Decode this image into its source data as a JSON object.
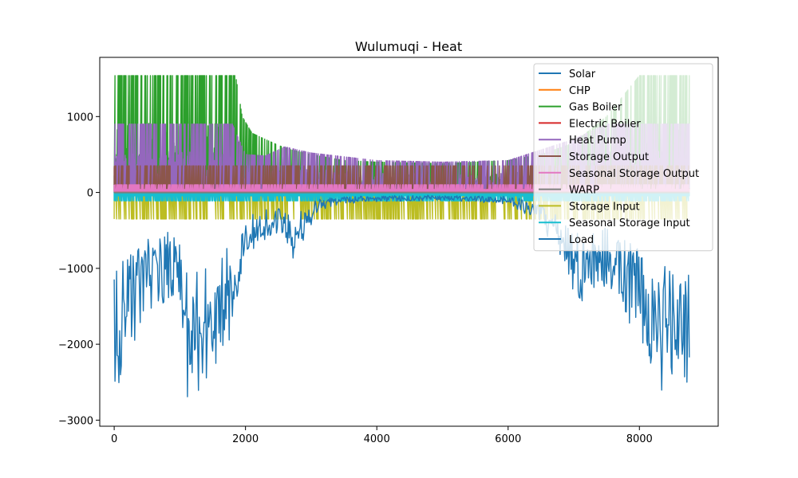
{
  "chart_data": {
    "type": "line",
    "title": "Wulumuqi - Heat",
    "xlabel": "",
    "ylabel": "",
    "xlim": [
      -220,
      9200
    ],
    "ylim": [
      -3080,
      1780
    ],
    "x_ticks": [
      0,
      2000,
      4000,
      6000,
      8000
    ],
    "y_ticks": [
      -3000,
      -2000,
      -1000,
      0,
      1000
    ],
    "x_tick_labels": [
      "0",
      "2000",
      "4000",
      "6000",
      "8000"
    ],
    "y_tick_labels": [
      "−3000",
      "−2000",
      "−1000",
      "0",
      "1000"
    ],
    "grid": false,
    "legend_position": "upper-right",
    "n_hours": 8760,
    "series": [
      {
        "name": "Solar",
        "color": "#1f77b4",
        "points": [
          [
            0,
            0
          ],
          [
            8760,
            0
          ]
        ]
      },
      {
        "name": "CHP",
        "color": "#ff7f0e",
        "points": [
          [
            0,
            0
          ],
          [
            8760,
            0
          ]
        ]
      },
      {
        "name": "Gas Boiler",
        "color": "#2ca02c",
        "points": [
          [
            0,
            1540
          ],
          [
            1000,
            1540
          ],
          [
            1850,
            1540
          ],
          [
            1950,
            1000
          ],
          [
            2100,
            780
          ],
          [
            2300,
            700
          ],
          [
            2500,
            620
          ],
          [
            2700,
            560
          ],
          [
            3000,
            500
          ],
          [
            3500,
            420
          ],
          [
            4000,
            400
          ],
          [
            5000,
            380
          ],
          [
            6000,
            420
          ],
          [
            6500,
            500
          ],
          [
            7000,
            650
          ],
          [
            7500,
            1000
          ],
          [
            8000,
            1540
          ],
          [
            8760,
            1540
          ]
        ]
      },
      {
        "name": "Electric Boiler",
        "color": "#d62728",
        "points": [
          [
            0,
            0
          ],
          [
            8760,
            0
          ]
        ]
      },
      {
        "name": "Heat Pump",
        "color": "#9467bd",
        "points": [
          [
            0,
            900
          ],
          [
            1000,
            900
          ],
          [
            1800,
            900
          ],
          [
            1900,
            700
          ],
          [
            2000,
            500
          ],
          [
            2300,
            480
          ],
          [
            2600,
            600
          ],
          [
            3000,
            520
          ],
          [
            4000,
            420
          ],
          [
            5000,
            400
          ],
          [
            6000,
            420
          ],
          [
            7000,
            700
          ],
          [
            7500,
            900
          ],
          [
            8760,
            900
          ]
        ]
      },
      {
        "name": "Storage Output",
        "color": "#8c564b",
        "points": [
          [
            0,
            350
          ],
          [
            2000,
            350
          ],
          [
            3000,
            350
          ],
          [
            4000,
            350
          ],
          [
            5000,
            350
          ],
          [
            6000,
            350
          ],
          [
            7000,
            350
          ],
          [
            8760,
            350
          ]
        ]
      },
      {
        "name": "Seasonal Storage Output",
        "color": "#e377c2",
        "points": [
          [
            0,
            100
          ],
          [
            8760,
            100
          ]
        ]
      },
      {
        "name": "WARP",
        "color": "#7f7f7f",
        "points": [
          [
            0,
            0
          ],
          [
            8760,
            0
          ]
        ]
      },
      {
        "name": "Storage Input",
        "color": "#bcbd22",
        "points": [
          [
            0,
            -350
          ],
          [
            2000,
            -350
          ],
          [
            4000,
            -350
          ],
          [
            6000,
            -350
          ],
          [
            8760,
            -350
          ]
        ]
      },
      {
        "name": "Seasonal Storage Input",
        "color": "#17becf",
        "points": [
          [
            0,
            -110
          ],
          [
            8760,
            -110
          ]
        ]
      },
      {
        "name": "Load",
        "color": "#1f77b4",
        "points": [
          [
            0,
            -2870
          ],
          [
            200,
            -2400
          ],
          [
            400,
            -1800
          ],
          [
            600,
            -1600
          ],
          [
            800,
            -1400
          ],
          [
            1000,
            -1300
          ],
          [
            1100,
            -2700
          ],
          [
            1300,
            -2600
          ],
          [
            1500,
            -2300
          ],
          [
            1700,
            -2100
          ],
          [
            1800,
            -1800
          ],
          [
            1900,
            -1200
          ],
          [
            2000,
            -800
          ],
          [
            2200,
            -700
          ],
          [
            2500,
            -550
          ],
          [
            2700,
            -900
          ],
          [
            2900,
            -600
          ],
          [
            3100,
            -250
          ],
          [
            3500,
            -150
          ],
          [
            4000,
            -120
          ],
          [
            5000,
            -100
          ],
          [
            6000,
            -150
          ],
          [
            6500,
            -400
          ],
          [
            7000,
            -1300
          ],
          [
            7200,
            -1500
          ],
          [
            7500,
            -1200
          ],
          [
            7800,
            -1800
          ],
          [
            8000,
            -2000
          ],
          [
            8300,
            -2830
          ],
          [
            8500,
            -2500
          ],
          [
            8700,
            -2750
          ],
          [
            8760,
            -2480
          ]
        ]
      }
    ]
  }
}
